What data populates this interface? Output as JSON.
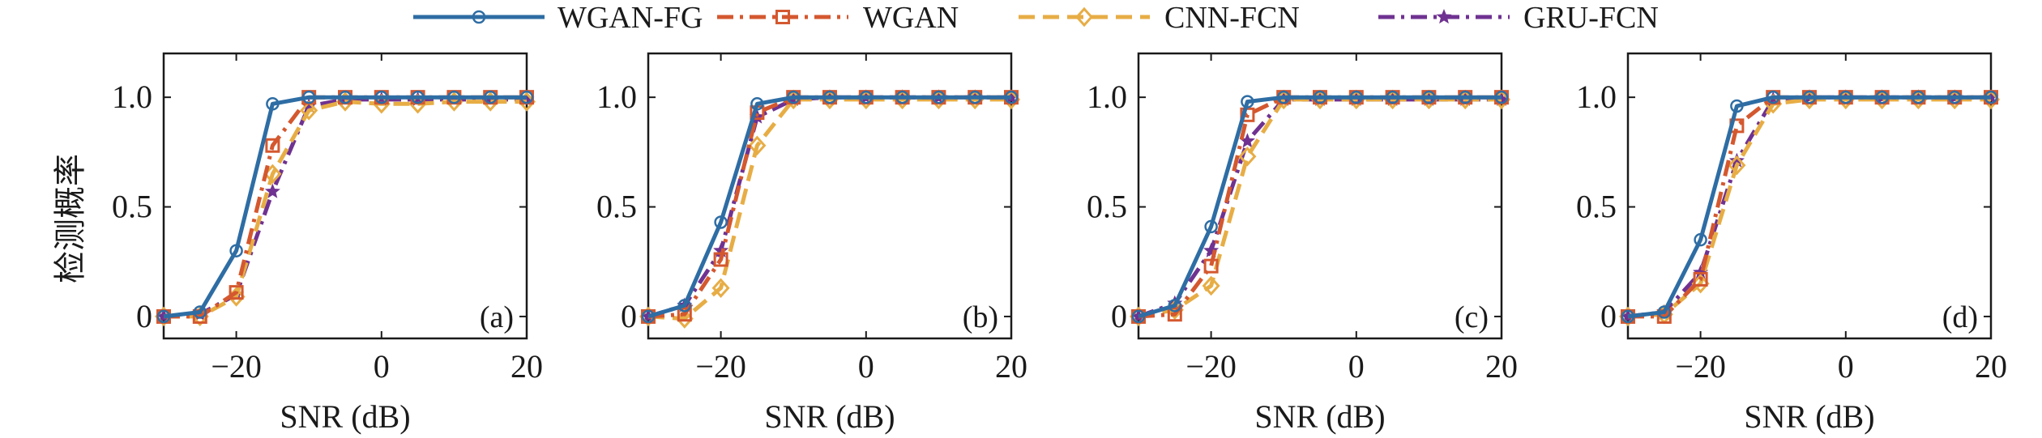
{
  "chart_data": {
    "type": "line",
    "ylabel": "检测概率",
    "xlabel": "SNR (dB)",
    "xlim": [
      -30,
      20
    ],
    "ylim": [
      -0.1,
      1.2
    ],
    "x_ticks": [
      -20,
      0,
      20
    ],
    "x_tick_labels": [
      "−20",
      "0",
      "20"
    ],
    "y_ticks": [
      0,
      0.5,
      1.0
    ],
    "y_tick_labels": [
      "0",
      "0.5",
      "1.0"
    ],
    "legend": {
      "placement": "top-center",
      "orientation": "horizontal"
    },
    "series_styles": [
      {
        "name": "WGAN-FG",
        "color": "#2e6da4",
        "dash": "solid",
        "marker": "circle"
      },
      {
        "name": "WGAN",
        "color": "#d4582f",
        "dash": "dashdot",
        "marker": "square"
      },
      {
        "name": "CNN-FCN",
        "color": "#e7ad45",
        "dash": "dashed",
        "marker": "diamond"
      },
      {
        "name": "GRU-FCN",
        "color": "#6f3291",
        "dash": "dashdot",
        "marker": "star"
      }
    ],
    "x": [
      -30,
      -25,
      -20,
      -15,
      -10,
      -5,
      0,
      5,
      10,
      15,
      20
    ],
    "panels": [
      {
        "label": "(a)",
        "series": [
          {
            "name": "WGAN-FG",
            "values": [
              0,
              0.02,
              0.3,
              0.97,
              1.0,
              1.0,
              1.0,
              1.0,
              1.0,
              1.0,
              1.0
            ]
          },
          {
            "name": "WGAN",
            "values": [
              0,
              0,
              0.11,
              0.78,
              1.0,
              1.0,
              1.0,
              1.0,
              1.0,
              1.0,
              1.0
            ]
          },
          {
            "name": "CNN-FCN",
            "values": [
              0,
              0,
              0.09,
              0.65,
              0.94,
              0.98,
              0.97,
              0.97,
              0.98,
              0.98,
              0.98
            ]
          },
          {
            "name": "GRU-FCN",
            "values": [
              0,
              0.01,
              0.1,
              0.57,
              0.96,
              0.99,
              0.99,
              0.99,
              0.99,
              0.99,
              0.99
            ]
          }
        ]
      },
      {
        "label": "(b)",
        "series": [
          {
            "name": "WGAN-FG",
            "values": [
              0,
              0.05,
              0.43,
              0.97,
              1.0,
              1.0,
              1.0,
              1.0,
              1.0,
              1.0,
              1.0
            ]
          },
          {
            "name": "WGAN",
            "values": [
              0,
              0.01,
              0.26,
              0.93,
              1.0,
              1.0,
              1.0,
              1.0,
              1.0,
              1.0,
              1.0
            ]
          },
          {
            "name": "CNN-FCN",
            "values": [
              0,
              -0.01,
              0.13,
              0.78,
              0.99,
              0.99,
              0.99,
              0.99,
              0.99,
              0.99,
              0.99
            ]
          },
          {
            "name": "GRU-FCN",
            "values": [
              0,
              0.05,
              0.3,
              0.91,
              0.99,
              1.0,
              1.0,
              1.0,
              1.0,
              1.0,
              1.0
            ]
          }
        ]
      },
      {
        "label": "(c)",
        "series": [
          {
            "name": "WGAN-FG",
            "values": [
              0,
              0.05,
              0.41,
              0.98,
              1.0,
              1.0,
              1.0,
              1.0,
              1.0,
              1.0,
              1.0
            ]
          },
          {
            "name": "WGAN",
            "values": [
              0,
              0.01,
              0.23,
              0.92,
              1.0,
              1.0,
              1.0,
              1.0,
              1.0,
              1.0,
              1.0
            ]
          },
          {
            "name": "CNN-FCN",
            "values": [
              0,
              0.03,
              0.14,
              0.73,
              0.99,
              0.99,
              0.99,
              0.99,
              0.99,
              0.99,
              0.99
            ]
          },
          {
            "name": "GRU-FCN",
            "values": [
              0,
              0.06,
              0.3,
              0.8,
              0.99,
              0.99,
              0.99,
              0.99,
              0.99,
              0.99,
              0.99
            ]
          }
        ]
      },
      {
        "label": "(d)",
        "series": [
          {
            "name": "WGAN-FG",
            "values": [
              0,
              0.02,
              0.35,
              0.96,
              1.0,
              1.0,
              1.0,
              1.0,
              1.0,
              1.0,
              1.0
            ]
          },
          {
            "name": "WGAN",
            "values": [
              0,
              0,
              0.17,
              0.87,
              1.0,
              1.0,
              1.0,
              1.0,
              1.0,
              1.0,
              1.0
            ]
          },
          {
            "name": "CNN-FCN",
            "values": [
              0,
              0.01,
              0.15,
              0.69,
              0.97,
              0.99,
              0.99,
              0.99,
              0.99,
              0.99,
              0.99
            ]
          },
          {
            "name": "GRU-FCN",
            "values": [
              0,
              0.02,
              0.2,
              0.71,
              0.99,
              1.0,
              1.0,
              1.0,
              1.0,
              1.0,
              1.0
            ]
          }
        ]
      }
    ]
  }
}
